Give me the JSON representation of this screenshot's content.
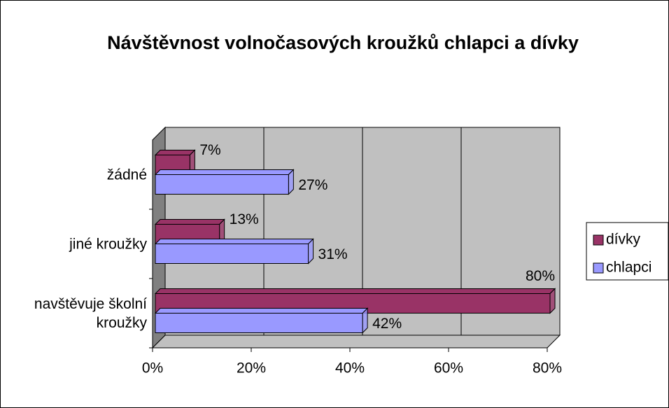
{
  "chart_data": {
    "type": "bar",
    "orientation": "horizontal",
    "title": "Návštěvnost volnočasových kroužků chlapci a dívky",
    "categories": [
      "navštěvuje školní kroužky",
      "jiné kroužky",
      "žádné"
    ],
    "series": [
      {
        "name": "dívky",
        "color": "#993366",
        "values": [
          80,
          13,
          7
        ],
        "value_labels": [
          "80%",
          "13%",
          "7%"
        ]
      },
      {
        "name": "chlapci",
        "color": "#9999ff",
        "values": [
          42,
          31,
          27
        ],
        "value_labels": [
          "42%",
          "31%",
          "27%"
        ]
      }
    ],
    "xlim": [
      0,
      80
    ],
    "xticks": [
      {
        "value": 0,
        "label": "0%"
      },
      {
        "value": 20,
        "label": "20%"
      },
      {
        "value": 40,
        "label": "40%"
      },
      {
        "value": 60,
        "label": "60%"
      },
      {
        "value": 80,
        "label": "80%"
      }
    ],
    "grid": true,
    "legend": "right"
  }
}
